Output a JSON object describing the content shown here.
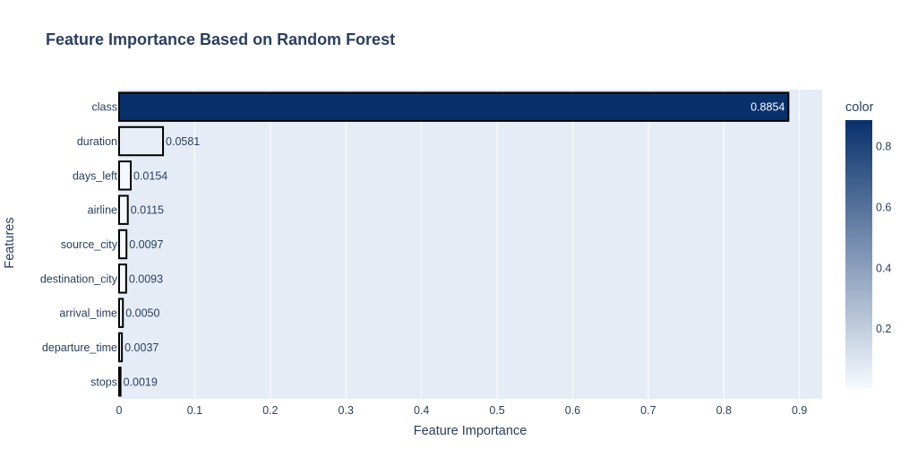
{
  "chart_data": {
    "type": "bar",
    "orientation": "horizontal",
    "title": "Feature Importance Based on Random Forest",
    "xlabel": "Feature Importance",
    "ylabel": "Features",
    "categories": [
      "class",
      "duration",
      "days_left",
      "airline",
      "source_city",
      "destination_city",
      "arrival_time",
      "departure_time",
      "stops"
    ],
    "values": [
      0.8854,
      0.0581,
      0.0154,
      0.0115,
      0.0097,
      0.0093,
      0.005,
      0.0037,
      0.0019
    ],
    "data_labels": [
      "0.8854",
      "0.0581",
      "0.0154",
      "0.0115",
      "0.0097",
      "0.0093",
      "0.0050",
      "0.0037",
      "0.0019"
    ],
    "xlim": [
      0,
      0.93
    ],
    "x_ticks": [
      0,
      0.1,
      0.2,
      0.3,
      0.4,
      0.5,
      0.6,
      0.7,
      0.8,
      0.9
    ],
    "x_tick_labels": [
      "0",
      "0.1",
      "0.2",
      "0.3",
      "0.4",
      "0.5",
      "0.6",
      "0.7",
      "0.8",
      "0.9"
    ],
    "grid": true,
    "colorbar": {
      "title": "color",
      "colorscale": "Blues",
      "range": [
        0.0019,
        0.8854
      ],
      "ticks": [
        0.2,
        0.4,
        0.6,
        0.8
      ],
      "tick_labels": [
        "0.2",
        "0.4",
        "0.6",
        "0.8"
      ]
    },
    "colors": {
      "plot_bg": "#e5ecf6",
      "grid": "#ffffff",
      "text": "#2a3f5f",
      "bar_outline": "#000000",
      "scale_low": "#f7fbff",
      "scale_high": "#08306b"
    }
  }
}
